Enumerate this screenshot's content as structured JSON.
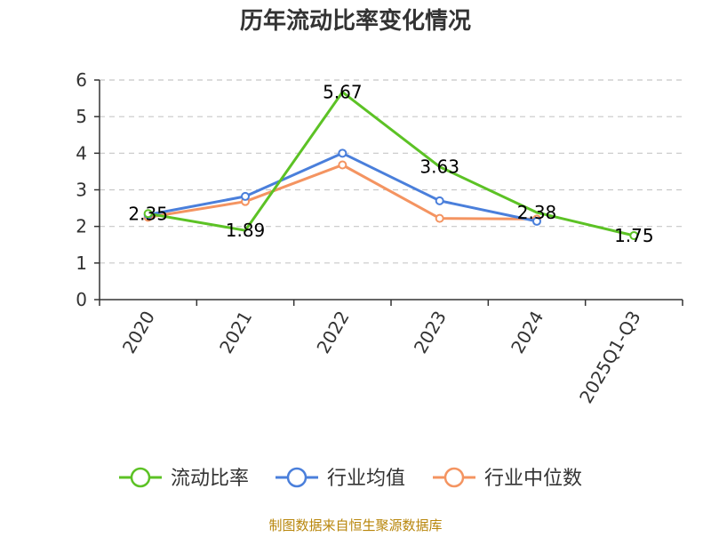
{
  "chart_data": {
    "type": "line",
    "title": "历年流动比率变化情况",
    "categories": [
      "2020",
      "2021",
      "2022",
      "2023",
      "2024",
      "2025Q1-Q3"
    ],
    "ylim": [
      0,
      6
    ],
    "yticks": [
      "0",
      "1",
      "2",
      "3",
      "4",
      "5",
      "6"
    ],
    "grid": true,
    "legend_position": "bottom",
    "series": [
      {
        "name": "流动比率",
        "color": "#5cc225",
        "values": [
          2.35,
          1.89,
          5.67,
          3.63,
          2.38,
          1.75
        ],
        "labels": [
          "2.35",
          "1.89",
          "5.67",
          "3.63",
          "2.38",
          "1.75"
        ],
        "show_markers_at": [
          0,
          5
        ]
      },
      {
        "name": "行业均值",
        "color": "#4a7fdb",
        "values": [
          2.32,
          2.82,
          4.0,
          2.7,
          2.14,
          null
        ],
        "labels": []
      },
      {
        "name": "行业中位数",
        "color": "#f49461",
        "values": [
          2.25,
          2.68,
          3.68,
          2.22,
          2.2,
          null
        ],
        "labels": []
      }
    ]
  },
  "source": "制图数据来自恒生聚源数据库"
}
